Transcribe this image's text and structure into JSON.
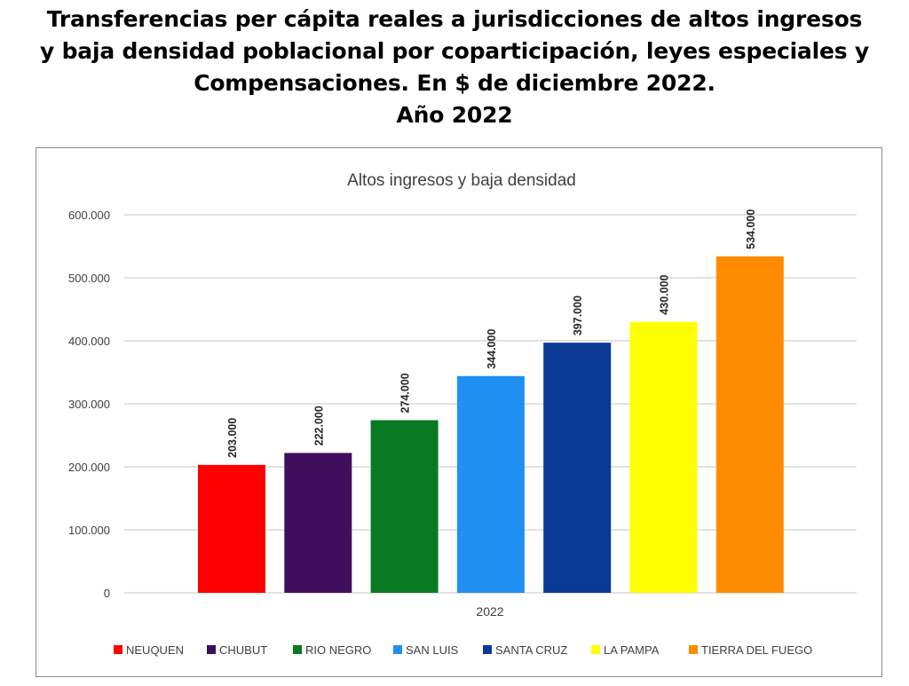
{
  "page_title": {
    "lines": [
      "Transferencias per cápita reales a jurisdicciones de altos ingresos",
      "y baja densidad poblacional por coparticipación, leyes especiales y",
      "Compensaciones. En $ de diciembre 2022.",
      "Año 2022"
    ]
  },
  "chart_data": {
    "type": "bar",
    "title": "Altos ingresos y baja densidad",
    "xlabel": "2022",
    "ylabel": "",
    "ylim": [
      0,
      600000
    ],
    "yticks": [
      0,
      100000,
      200000,
      300000,
      400000,
      500000,
      600000
    ],
    "ytick_labels": [
      "0",
      "100.000",
      "200.000",
      "300.000",
      "400.000",
      "500.000",
      "600.000"
    ],
    "grid": true,
    "legend_position": "bottom",
    "categories": [
      "2022"
    ],
    "series": [
      {
        "name": "NEUQUEN",
        "values": [
          203000
        ],
        "label": "203.000",
        "color": "#ff0000"
      },
      {
        "name": "CHUBUT",
        "values": [
          222000
        ],
        "label": "222.000",
        "color": "#3f0f5e"
      },
      {
        "name": "RIO NEGRO",
        "values": [
          274000
        ],
        "label": "274.000",
        "color": "#0a7a22"
      },
      {
        "name": "SAN LUIS",
        "values": [
          344000
        ],
        "label": "344.000",
        "color": "#1f8ff2"
      },
      {
        "name": "SANTA CRUZ",
        "values": [
          397000
        ],
        "label": "397.000",
        "color": "#0b3a96"
      },
      {
        "name": "LA PAMPA",
        "values": [
          430000
        ],
        "label": "430.000",
        "color": "#ffff00"
      },
      {
        "name": "TIERRA DEL FUEGO",
        "values": [
          534000
        ],
        "label": "534.000",
        "color": "#ff8c00"
      }
    ]
  }
}
